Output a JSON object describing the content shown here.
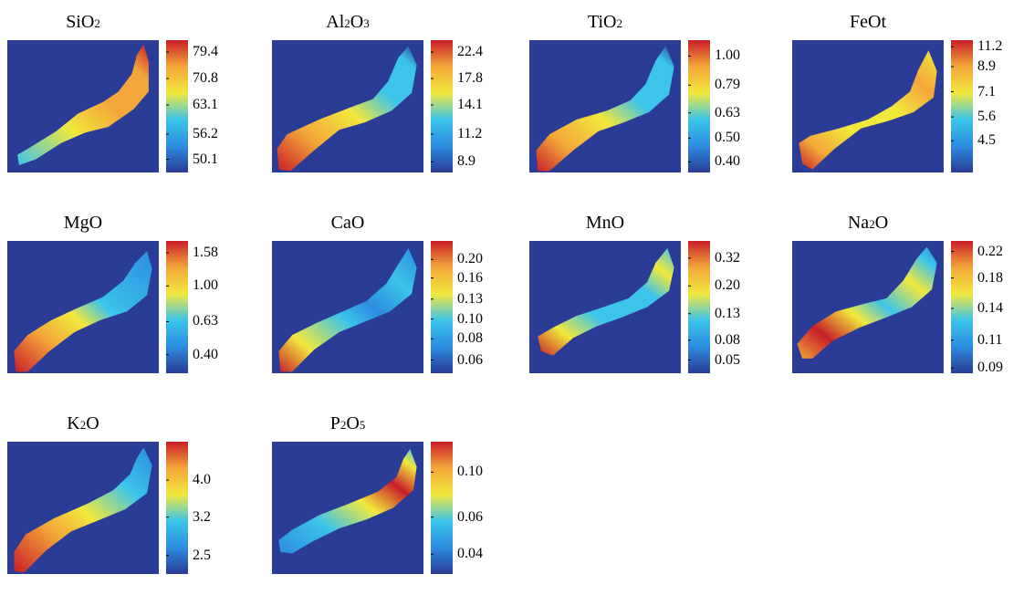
{
  "chart_data": {
    "type": "heatmap",
    "colormap": [
      "#2a3c96",
      "#2c8ce0",
      "#3cc4ea",
      "#f2e83c",
      "#f3a63a",
      "#c81e28"
    ],
    "map_background": "#2a3c96",
    "panels": [
      {
        "id": "sio2",
        "title_parts": [
          {
            "t": "SiO"
          },
          {
            "s": "2"
          }
        ],
        "ticks": [
          {
            "label": "79.4",
            "frac": 0.91
          },
          {
            "label": "70.8",
            "frac": 0.71
          },
          {
            "label": "63.1",
            "frac": 0.51
          },
          {
            "label": "56.2",
            "frac": 0.29
          },
          {
            "label": "50.1",
            "frac": 0.1
          }
        ],
        "gradient": "sio2"
      },
      {
        "id": "al2o3",
        "title_parts": [
          {
            "t": "Al"
          },
          {
            "s": "2"
          },
          {
            "t": "O"
          },
          {
            "s": "3"
          }
        ],
        "ticks": [
          {
            "label": "22.4",
            "frac": 0.91
          },
          {
            "label": "17.8",
            "frac": 0.71
          },
          {
            "label": "14.1",
            "frac": 0.51
          },
          {
            "label": "11.2",
            "frac": 0.29
          },
          {
            "label": "8.9",
            "frac": 0.08
          }
        ],
        "gradient": "al2o3"
      },
      {
        "id": "tio2",
        "title_parts": [
          {
            "t": "TiO"
          },
          {
            "s": "2"
          }
        ],
        "ticks": [
          {
            "label": "1.00",
            "frac": 0.88
          },
          {
            "label": "0.79",
            "frac": 0.66
          },
          {
            "label": "0.63",
            "frac": 0.45
          },
          {
            "label": "0.50",
            "frac": 0.26
          },
          {
            "label": "0.40",
            "frac": 0.08
          }
        ],
        "gradient": "tio2"
      },
      {
        "id": "feot",
        "title_parts": [
          {
            "t": "FeOt"
          }
        ],
        "ticks": [
          {
            "label": "11.2",
            "frac": 0.95
          },
          {
            "label": "8.9",
            "frac": 0.8
          },
          {
            "label": "7.1",
            "frac": 0.61
          },
          {
            "label": "5.6",
            "frac": 0.42
          },
          {
            "label": "4.5",
            "frac": 0.24
          }
        ],
        "gradient": "feot"
      },
      {
        "id": "mgo",
        "title_parts": [
          {
            "t": "MgO"
          }
        ],
        "ticks": [
          {
            "label": "1.58",
            "frac": 0.91
          },
          {
            "label": "1.00",
            "frac": 0.66
          },
          {
            "label": "0.63",
            "frac": 0.39
          },
          {
            "label": "0.40",
            "frac": 0.14
          }
        ],
        "gradient": "mgo"
      },
      {
        "id": "cao",
        "title_parts": [
          {
            "t": "CaO"
          }
        ],
        "ticks": [
          {
            "label": "0.20",
            "frac": 0.86
          },
          {
            "label": "0.16",
            "frac": 0.72
          },
          {
            "label": "0.13",
            "frac": 0.56
          },
          {
            "label": "0.10",
            "frac": 0.41
          },
          {
            "label": "0.08",
            "frac": 0.26
          },
          {
            "label": "0.06",
            "frac": 0.1
          }
        ],
        "gradient": "cao"
      },
      {
        "id": "mno",
        "title_parts": [
          {
            "t": "MnO"
          }
        ],
        "ticks": [
          {
            "label": "0.32",
            "frac": 0.87
          },
          {
            "label": "0.20",
            "frac": 0.66
          },
          {
            "label": "0.13",
            "frac": 0.45
          },
          {
            "label": "0.08",
            "frac": 0.25
          },
          {
            "label": "0.05",
            "frac": 0.1
          }
        ],
        "gradient": "mno"
      },
      {
        "id": "na2o",
        "title_parts": [
          {
            "t": "Na"
          },
          {
            "s": "2"
          },
          {
            "t": "O"
          }
        ],
        "ticks": [
          {
            "label": "0.22",
            "frac": 0.92
          },
          {
            "label": "0.18",
            "frac": 0.72
          },
          {
            "label": "0.14",
            "frac": 0.49
          },
          {
            "label": "0.11",
            "frac": 0.25
          },
          {
            "label": "0.09",
            "frac": 0.04
          }
        ],
        "gradient": "na2o"
      },
      {
        "id": "k2o",
        "title_parts": [
          {
            "t": "K"
          },
          {
            "s": "2"
          },
          {
            "t": "O"
          }
        ],
        "ticks": [
          {
            "label": "4.0",
            "frac": 0.71
          },
          {
            "label": "3.2",
            "frac": 0.43
          },
          {
            "label": "2.5",
            "frac": 0.14
          }
        ],
        "gradient": "k2o"
      },
      {
        "id": "p2o5",
        "title_parts": [
          {
            "t": "P"
          },
          {
            "s": "2"
          },
          {
            "t": "O"
          },
          {
            "s": "5"
          }
        ],
        "ticks": [
          {
            "label": "0.10",
            "frac": 0.77
          },
          {
            "label": "0.06",
            "frac": 0.43
          },
          {
            "label": "0.04",
            "frac": 0.15
          }
        ],
        "gradient": "p2o5"
      }
    ]
  }
}
